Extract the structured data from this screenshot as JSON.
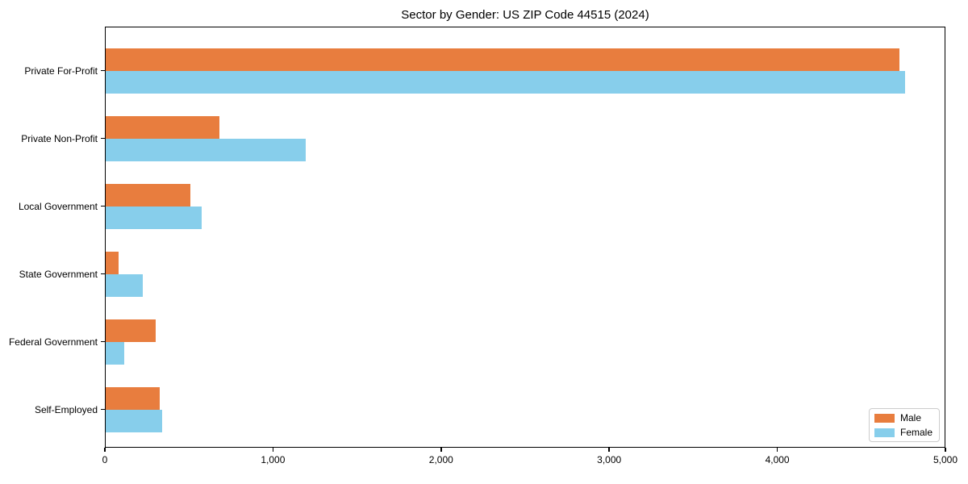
{
  "chart_data": {
    "type": "bar",
    "orientation": "horizontal",
    "title": "Sector by Gender: US ZIP Code 44515 (2024)",
    "categories": [
      "Private For-Profit",
      "Private Non-Profit",
      "Local Government",
      "State Government",
      "Federal Government",
      "Self-Employed"
    ],
    "series": [
      {
        "name": "Male",
        "color": "#e87d3e",
        "values": [
          4725,
          680,
          510,
          80,
          300,
          325
        ]
      },
      {
        "name": "Female",
        "color": "#87ceeb",
        "values": [
          4760,
          1195,
          575,
          225,
          115,
          340
        ]
      }
    ],
    "xlabel": "",
    "ylabel": "",
    "xlim": [
      0,
      5000
    ],
    "xticks": [
      0,
      1000,
      2000,
      3000,
      4000,
      5000
    ],
    "grid": false,
    "legend_position": "lower right",
    "background_color": "#ffffff",
    "axis_color": "#000000"
  }
}
